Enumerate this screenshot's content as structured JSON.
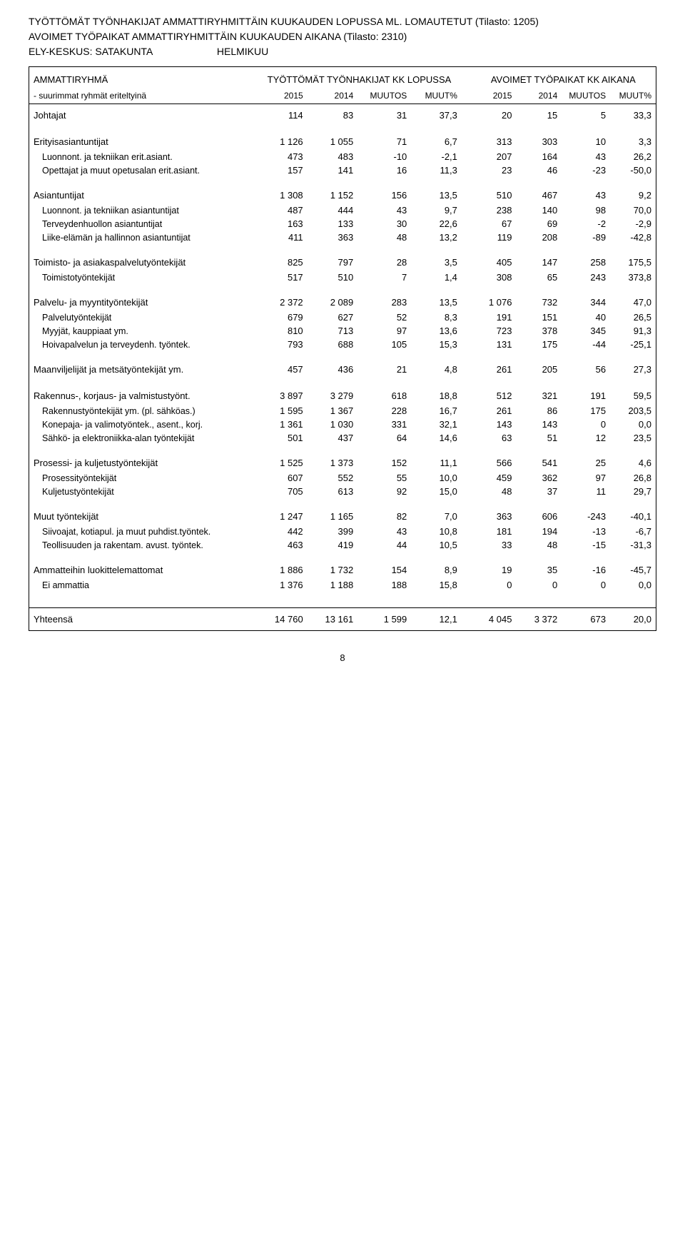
{
  "header": {
    "line1": "TYÖTTÖMÄT TYÖNHAKIJAT AMMATTIRYHMITTÄIN KUUKAUDEN LOPUSSA ML. LOMAUTETUT  (Tilasto: 1205)",
    "line2": "AVOIMET TYÖPAIKAT AMMATTIRYHMITTÄIN KUUKAUDEN AIKANA (Tilasto: 2310)",
    "ely": "ELY-KESKUS: SATAKUNTA",
    "month": "HELMIKUU"
  },
  "tableHead": {
    "rowLabel": "AMMATTIRYHMÄ",
    "leftGroup": "TYÖTTÖMÄT TYÖNHAKIJAT KK LOPUSSA",
    "rightGroup": "AVOIMET TYÖPAIKAT KK AIKANA",
    "subLabel": "- suurimmat ryhmät eriteltyinä",
    "c1": "2015",
    "c2": "2014",
    "c3": "MUUTOS",
    "c4": "MUUT%",
    "c5": "2015",
    "c6": "2014",
    "c7": "MUUTOS",
    "c8": "MUUT%"
  },
  "sections": [
    {
      "label": "Johtajat",
      "vals": [
        "114",
        "83",
        "31",
        "37,3",
        "20",
        "15",
        "5",
        "33,3"
      ],
      "subs": []
    },
    {
      "label": "Erityisasiantuntijat",
      "vals": [
        "1 126",
        "1 055",
        "71",
        "6,7",
        "313",
        "303",
        "10",
        "3,3"
      ],
      "subs": [
        {
          "label": "Luonnont. ja tekniikan erit.asiant.",
          "vals": [
            "473",
            "483",
            "-10",
            "-2,1",
            "207",
            "164",
            "43",
            "26,2"
          ]
        },
        {
          "label": "Opettajat ja muut opetusalan erit.asiant.",
          "vals": [
            "157",
            "141",
            "16",
            "11,3",
            "23",
            "46",
            "-23",
            "-50,0"
          ]
        }
      ]
    },
    {
      "label": "Asiantuntijat",
      "vals": [
        "1 308",
        "1 152",
        "156",
        "13,5",
        "510",
        "467",
        "43",
        "9,2"
      ],
      "subs": [
        {
          "label": "Luonnont. ja tekniikan asiantuntijat",
          "vals": [
            "487",
            "444",
            "43",
            "9,7",
            "238",
            "140",
            "98",
            "70,0"
          ]
        },
        {
          "label": "Terveydenhuollon asiantuntijat",
          "vals": [
            "163",
            "133",
            "30",
            "22,6",
            "67",
            "69",
            "-2",
            "-2,9"
          ]
        },
        {
          "label": "Liike-elämän ja hallinnon asiantuntijat",
          "vals": [
            "411",
            "363",
            "48",
            "13,2",
            "119",
            "208",
            "-89",
            "-42,8"
          ]
        }
      ]
    },
    {
      "label": "Toimisto- ja asiakaspalvelutyöntekijät",
      "vals": [
        "825",
        "797",
        "28",
        "3,5",
        "405",
        "147",
        "258",
        "175,5"
      ],
      "subs": [
        {
          "label": "Toimistotyöntekijät",
          "vals": [
            "517",
            "510",
            "7",
            "1,4",
            "308",
            "65",
            "243",
            "373,8"
          ]
        }
      ]
    },
    {
      "label": "Palvelu- ja myyntityöntekijät",
      "vals": [
        "2 372",
        "2 089",
        "283",
        "13,5",
        "1 076",
        "732",
        "344",
        "47,0"
      ],
      "subs": [
        {
          "label": "Palvelutyöntekijät",
          "vals": [
            "679",
            "627",
            "52",
            "8,3",
            "191",
            "151",
            "40",
            "26,5"
          ]
        },
        {
          "label": "Myyjät, kauppiaat ym.",
          "vals": [
            "810",
            "713",
            "97",
            "13,6",
            "723",
            "378",
            "345",
            "91,3"
          ]
        },
        {
          "label": "Hoivapalvelun ja terveydenh. työntek.",
          "vals": [
            "793",
            "688",
            "105",
            "15,3",
            "131",
            "175",
            "-44",
            "-25,1"
          ]
        }
      ]
    },
    {
      "label": "Maanviljelijät ja metsätyöntekijät ym.",
      "vals": [
        "457",
        "436",
        "21",
        "4,8",
        "261",
        "205",
        "56",
        "27,3"
      ],
      "subs": []
    },
    {
      "label": "Rakennus-, korjaus- ja valmistustyönt.",
      "vals": [
        "3 897",
        "3 279",
        "618",
        "18,8",
        "512",
        "321",
        "191",
        "59,5"
      ],
      "subs": [
        {
          "label": "Rakennustyöntekijät ym. (pl. sähköas.)",
          "vals": [
            "1 595",
            "1 367",
            "228",
            "16,7",
            "261",
            "86",
            "175",
            "203,5"
          ]
        },
        {
          "label": "Konepaja- ja valimotyöntek., asent., korj.",
          "vals": [
            "1 361",
            "1 030",
            "331",
            "32,1",
            "143",
            "143",
            "0",
            "0,0"
          ]
        },
        {
          "label": "Sähkö- ja elektroniikka-alan työntekijät",
          "vals": [
            "501",
            "437",
            "64",
            "14,6",
            "63",
            "51",
            "12",
            "23,5"
          ]
        }
      ]
    },
    {
      "label": "Prosessi- ja kuljetustyöntekijät",
      "vals": [
        "1 525",
        "1 373",
        "152",
        "11,1",
        "566",
        "541",
        "25",
        "4,6"
      ],
      "subs": [
        {
          "label": "Prosessityöntekijät",
          "vals": [
            "607",
            "552",
            "55",
            "10,0",
            "459",
            "362",
            "97",
            "26,8"
          ]
        },
        {
          "label": "Kuljetustyöntekijät",
          "vals": [
            "705",
            "613",
            "92",
            "15,0",
            "48",
            "37",
            "11",
            "29,7"
          ]
        }
      ]
    },
    {
      "label": "Muut työntekijät",
      "vals": [
        "1 247",
        "1 165",
        "82",
        "7,0",
        "363",
        "606",
        "-243",
        "-40,1"
      ],
      "subs": [
        {
          "label": "Siivoajat, kotiapul. ja muut puhdist.työntek.",
          "vals": [
            "442",
            "399",
            "43",
            "10,8",
            "181",
            "194",
            "-13",
            "-6,7"
          ]
        },
        {
          "label": "Teollisuuden ja rakentam. avust. työntek.",
          "vals": [
            "463",
            "419",
            "44",
            "10,5",
            "33",
            "48",
            "-15",
            "-31,3"
          ]
        }
      ]
    },
    {
      "label": "Ammatteihin luokittelemattomat",
      "vals": [
        "1 886",
        "1 732",
        "154",
        "8,9",
        "19",
        "35",
        "-16",
        "-45,7"
      ],
      "subs": [
        {
          "label": "Ei ammattia",
          "vals": [
            "1 376",
            "1 188",
            "188",
            "15,8",
            "0",
            "0",
            "0",
            "0,0"
          ]
        }
      ]
    }
  ],
  "total": {
    "label": "Yhteensä",
    "vals": [
      "14 760",
      "13 161",
      "1 599",
      "12,1",
      "4 045",
      "3 372",
      "673",
      "20,0"
    ]
  },
  "pageNumber": "8"
}
